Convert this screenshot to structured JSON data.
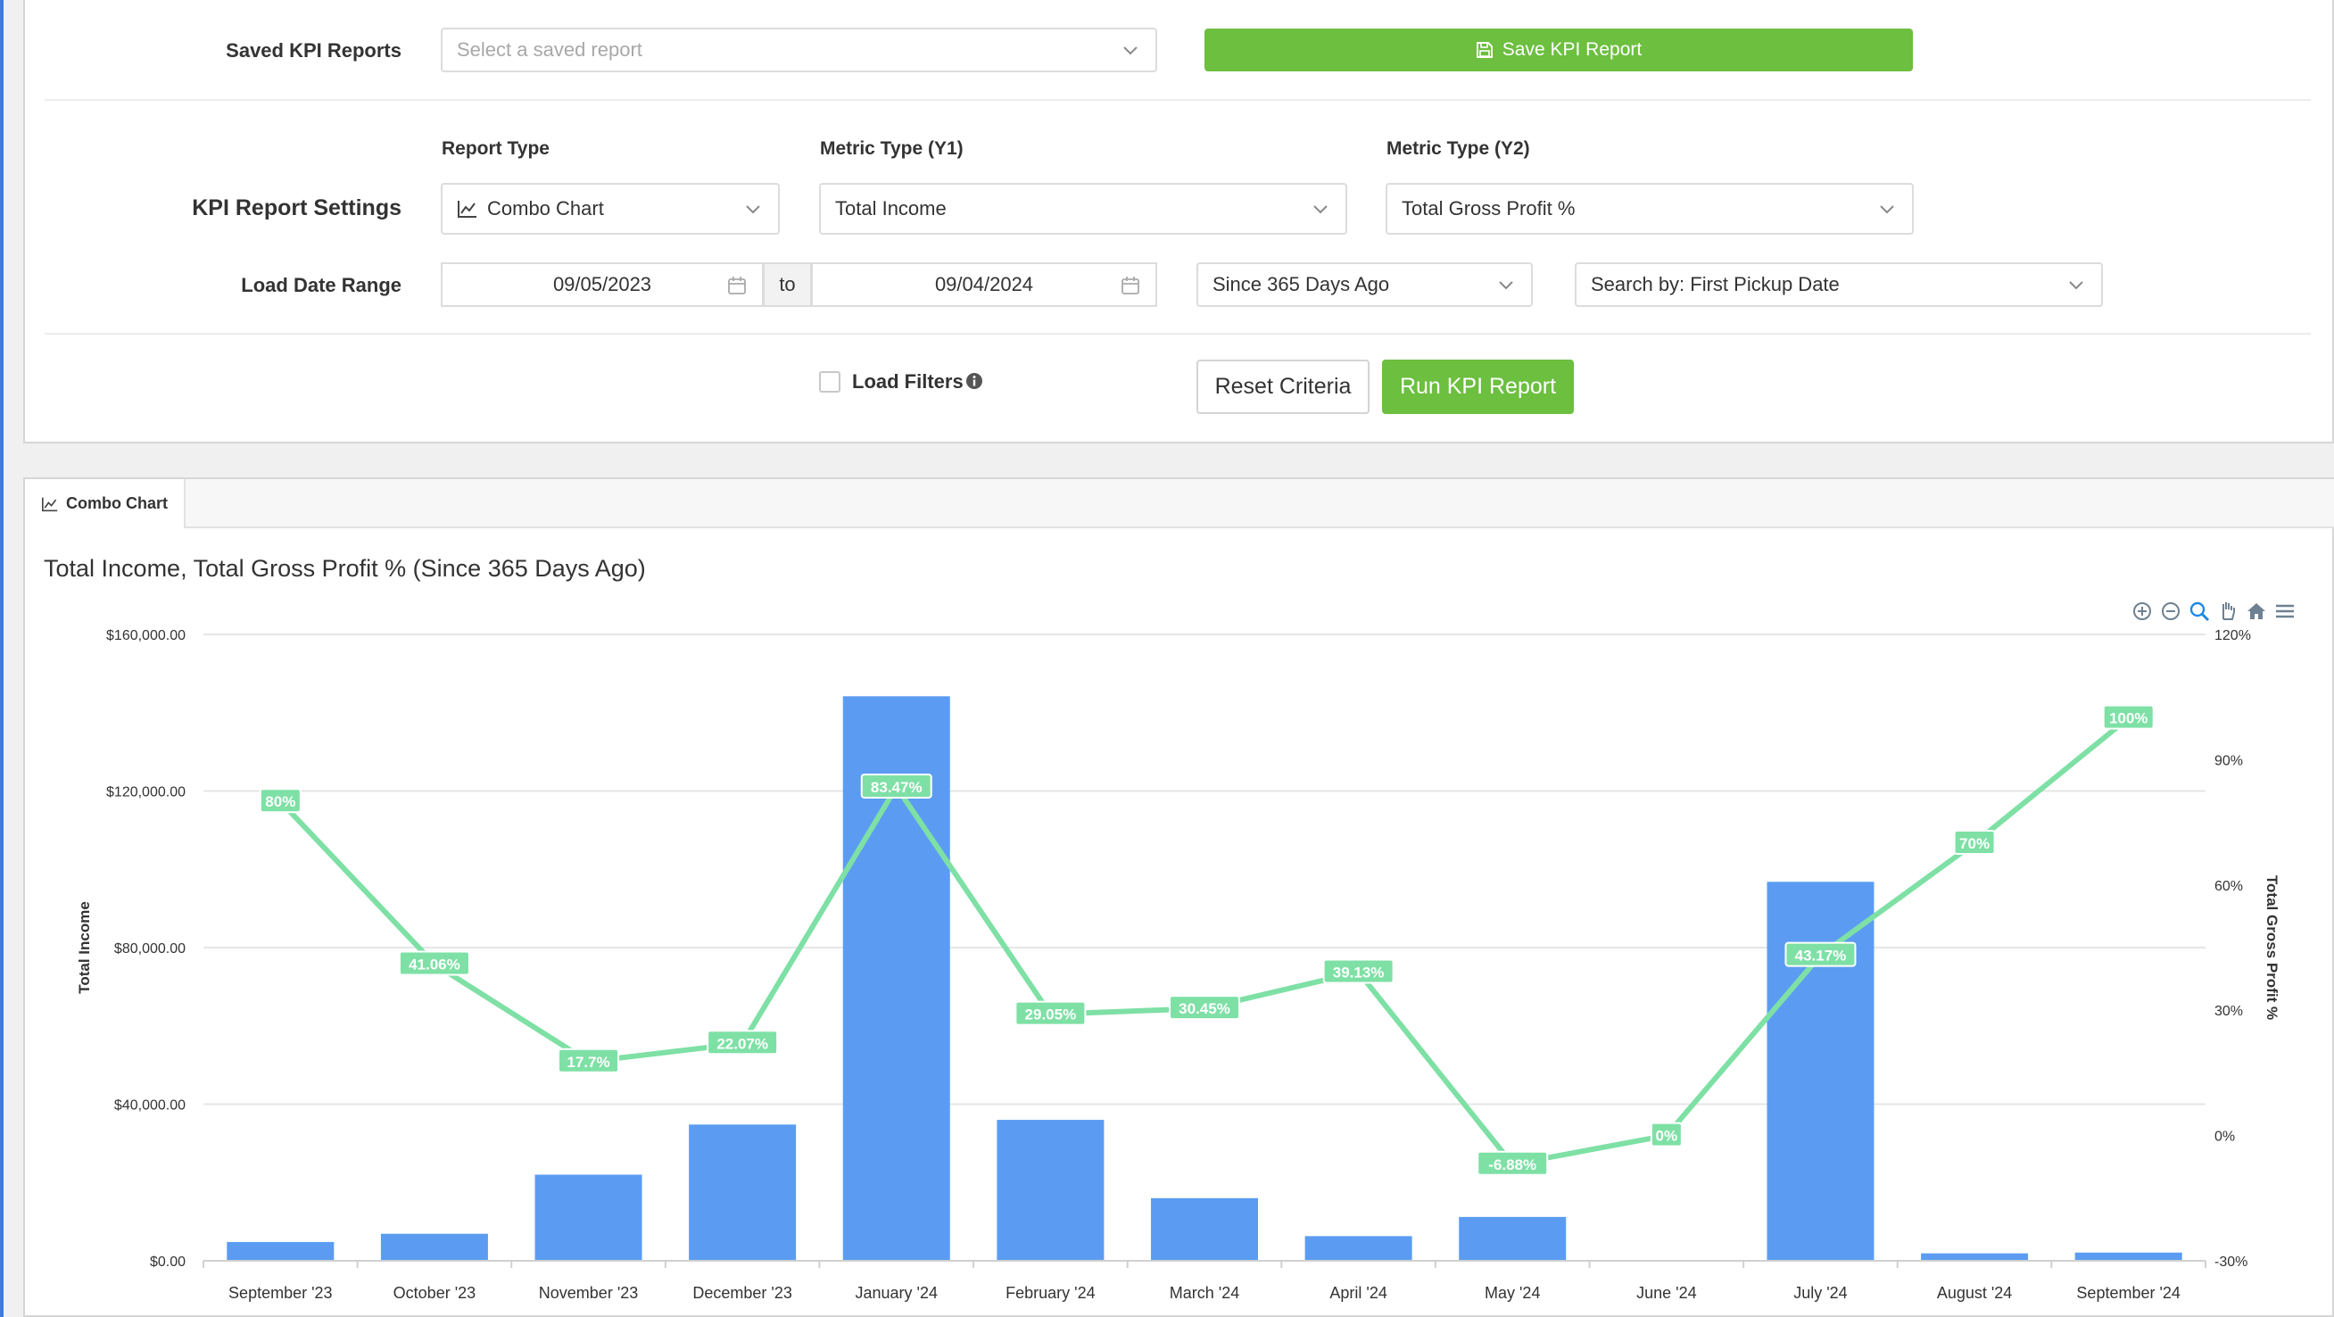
{
  "saved_reports": {
    "label": "Saved KPI Reports",
    "placeholder": "Select a saved report",
    "save_button": "Save KPI Report"
  },
  "settings": {
    "section_label": "KPI Report Settings",
    "report_type": {
      "label": "Report Type",
      "value": "Combo Chart"
    },
    "metric_y1": {
      "label": "Metric Type (Y1)",
      "value": "Total Income"
    },
    "metric_y2": {
      "label": "Metric Type (Y2)",
      "value": "Total Gross Profit %"
    }
  },
  "date_range": {
    "label": "Load Date Range",
    "from": "09/05/2023",
    "to_label": "to",
    "to": "09/04/2024",
    "preset": "Since 365 Days Ago",
    "search_by": "Search by: First Pickup Date"
  },
  "filters": {
    "label": "Load Filters",
    "checked": false
  },
  "actions": {
    "reset": "Reset Criteria",
    "run": "Run KPI Report"
  },
  "chart_tab": {
    "label": "Combo Chart"
  },
  "colors": {
    "accent_green": "#6cbf3f",
    "bar_blue": "#5b9cf2",
    "line_green": "#7ee0a5"
  },
  "chart_data": {
    "type": "bar",
    "title": "Total Income, Total Gross Profit % (Since 365 Days Ago)",
    "categories": [
      "September '23",
      "October '23",
      "November '23",
      "December '23",
      "January '24",
      "February '24",
      "March '24",
      "April '24",
      "May '24",
      "June '24",
      "July '24",
      "August '24",
      "September '24"
    ],
    "series": [
      {
        "name": "Total Income",
        "type": "bar",
        "axis": "y1",
        "values": [
          4800,
          6900,
          22000,
          34800,
          144200,
          36000,
          16000,
          6300,
          11200,
          0,
          96800,
          1900,
          2100
        ]
      },
      {
        "name": "Total Gross Profit %",
        "type": "line",
        "axis": "y2",
        "values": [
          80,
          41.06,
          17.7,
          22.07,
          83.47,
          29.05,
          30.45,
          39.13,
          -6.88,
          0,
          43.17,
          70,
          100
        ],
        "labels": [
          "80%",
          "41.06%",
          "17.7%",
          "22.07%",
          "83.47%",
          "29.05%",
          "30.45%",
          "39.13%",
          "-6.88%",
          "0%",
          "43.17%",
          "70%",
          "100%"
        ]
      }
    ],
    "y1": {
      "label": "Total Income",
      "min": 0,
      "max": 160000,
      "ticks": [
        0,
        40000,
        80000,
        120000,
        160000
      ],
      "tick_labels": [
        "$0.00",
        "$40,000.00",
        "$80,000.00",
        "$120,000.00",
        "$160,000.00"
      ]
    },
    "y2": {
      "label": "Total Gross Profit %",
      "min": -30,
      "max": 120,
      "ticks": [
        -30,
        0,
        30,
        60,
        90,
        120
      ],
      "tick_labels": [
        "-30%",
        "0%",
        "30%",
        "60%",
        "90%",
        "120%"
      ]
    },
    "grid": true
  }
}
